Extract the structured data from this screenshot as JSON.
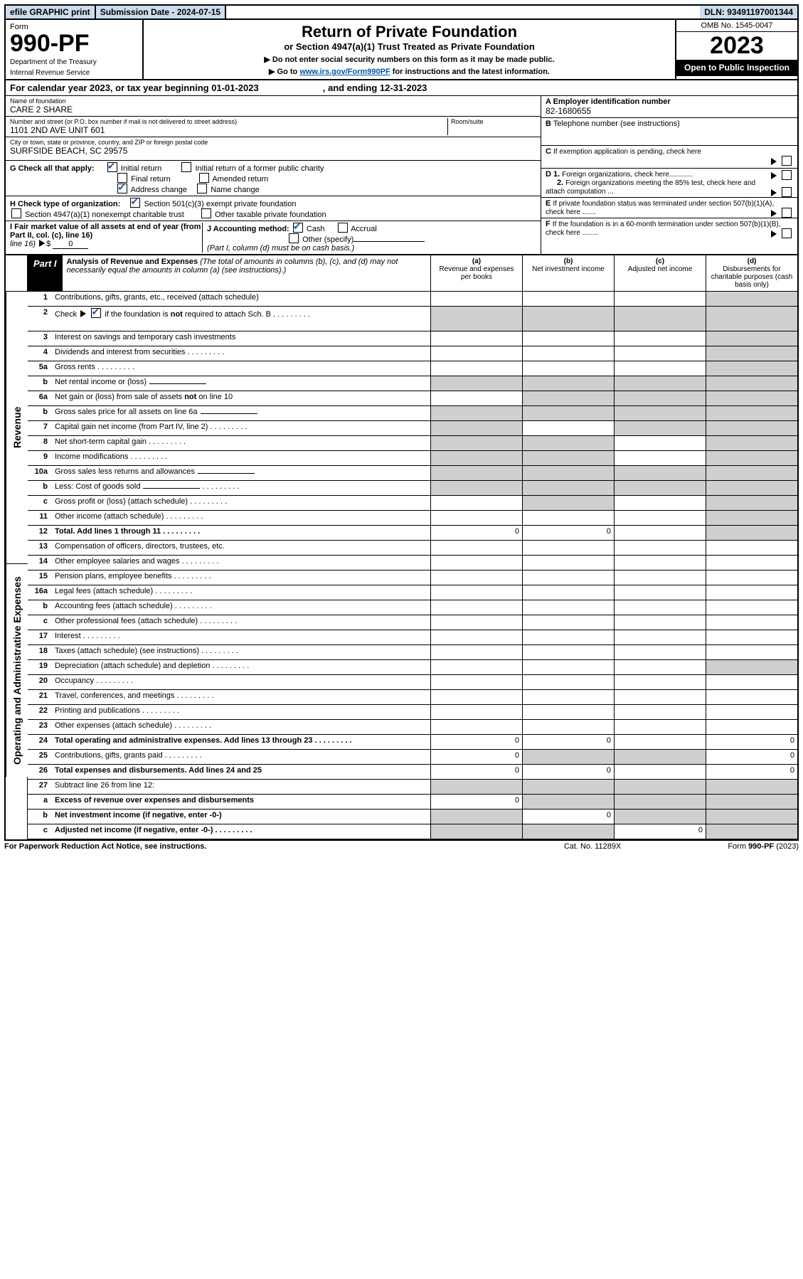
{
  "top": {
    "efile": "efile GRAPHIC print",
    "sub": "Submission Date - 2024-07-15",
    "dln": "DLN: 93491197001344"
  },
  "hdr": {
    "form": "Form",
    "num": "990-PF",
    "dept": "Department of the Treasury",
    "irs": "Internal Revenue Service",
    "title": "Return of Private Foundation",
    "sub": "or Section 4947(a)(1) Trust Treated as Private Foundation",
    "l1": "▶ Do not enter social security numbers on this form as it may be made public.",
    "l2": "▶ Go to",
    "link": "www.irs.gov/Form990PF",
    "l2b": "for instructions and the latest information.",
    "omb": "OMB No. 1545-0047",
    "year": "2023",
    "pub": "Open to Public Inspection"
  },
  "cal": {
    "a": "For calendar year 2023, or tax year beginning 01-01-2023",
    "b": ", and ending 12-31-2023"
  },
  "id": {
    "name_l": "Name of foundation",
    "name": "CARE 2 SHARE",
    "addr_l": "Number and street (or P.O. box number if mail is not delivered to street address)",
    "addr": "1101 2ND AVE UNIT 601",
    "room_l": "Room/suite",
    "city_l": "City or town, state or province, country, and ZIP or foreign postal code",
    "city": "SURFSIDE BEACH, SC  29575",
    "a_l": "A Employer identification number",
    "a": "82-1680655",
    "b_l": "B",
    "b": "Telephone number (see instructions)",
    "c": "C",
    "c_t": "If exemption application is pending, check here",
    "d1": "D 1.",
    "d1_t": "Foreign organizations, check here............",
    "d2": "2.",
    "d2_t": "Foreign organizations meeting the 85% test, check here and attach computation ...",
    "e": "E",
    "e_t": "If private foundation status was terminated under section 507(b)(1)(A), check here .......",
    "f": "F",
    "f_t": "If the foundation is in a 60-month termination under section 507(b)(1)(B), check here ........"
  },
  "g": {
    "t": "G Check all that apply:",
    "r1": "Initial return",
    "r2": "Initial return of a former public charity",
    "r3": "Final return",
    "r4": "Amended return",
    "r5": "Address change",
    "r6": "Name change"
  },
  "h": {
    "t": "H Check type of organization:",
    "a": "Section 501(c)(3) exempt private foundation",
    "b": "Section 4947(a)(1) nonexempt charitable trust",
    "c": "Other taxable private foundation"
  },
  "i": {
    "t": "I Fair market value of all assets at end of year (from Part II, col. (c), line 16)",
    "arrow": "▶",
    "amt": "$",
    "val": "0"
  },
  "j": {
    "t": "J Accounting method:",
    "a": "Cash",
    "b": "Accrual",
    "c": "Other (specify)",
    "d": "(Part I, column (d) must be on cash basis.)"
  },
  "part": {
    "tag": "Part I",
    "title": "Analysis of Revenue and Expenses",
    "desc": "(The total of amounts in columns (b), (c), and (d) may not necessarily equal the amounts in column (a) (see instructions).)",
    "ca": "(a)",
    "cat": "Revenue and expenses per books",
    "cb": "(b)",
    "cbt": "Net investment income",
    "cc": "(c)",
    "cct": "Adjusted net income",
    "cd": "(d)",
    "cdt": "Disbursements for charitable purposes (cash basis only)"
  },
  "rev": [
    {
      "n": "1",
      "t": "Contributions, gifts, grants, etc., received (attach schedule)",
      "g": [
        0,
        0,
        0,
        1
      ]
    },
    {
      "n": "2",
      "t": "Check ▶ ☑ if the foundation is not required to attach Sch. B",
      "dots": 1,
      "g": [
        1,
        1,
        1,
        1
      ],
      "tall": 1
    },
    {
      "n": "3",
      "t": "Interest on savings and temporary cash investments",
      "g": [
        0,
        0,
        0,
        1
      ]
    },
    {
      "n": "4",
      "t": "Dividends and interest from securities",
      "dots": 1,
      "g": [
        0,
        0,
        0,
        1
      ]
    },
    {
      "n": "5a",
      "t": "Gross rents",
      "dots": 1,
      "g": [
        0,
        0,
        0,
        1
      ]
    },
    {
      "n": "b",
      "t": "Net rental income or (loss)",
      "short": 1,
      "g": [
        1,
        1,
        1,
        1
      ]
    },
    {
      "n": "6a",
      "t": "Net gain or (loss) from sale of assets not on line 10",
      "g": [
        0,
        1,
        1,
        1
      ]
    },
    {
      "n": "b",
      "t": "Gross sales price for all assets on line 6a",
      "short": 1,
      "g": [
        1,
        1,
        1,
        1
      ]
    },
    {
      "n": "7",
      "t": "Capital gain net income (from Part IV, line 2)",
      "dots": 1,
      "g": [
        1,
        0,
        1,
        1
      ]
    },
    {
      "n": "8",
      "t": "Net short-term capital gain",
      "dots": 1,
      "g": [
        1,
        1,
        0,
        1
      ]
    },
    {
      "n": "9",
      "t": "Income modifications",
      "dots": 1,
      "g": [
        1,
        1,
        0,
        1
      ]
    },
    {
      "n": "10a",
      "t": "Gross sales less returns and allowances",
      "short": 1,
      "g": [
        1,
        1,
        1,
        1
      ]
    },
    {
      "n": "b",
      "t": "Less: Cost of goods sold",
      "dots": 1,
      "short": 1,
      "g": [
        1,
        1,
        1,
        1
      ]
    },
    {
      "n": "c",
      "t": "Gross profit or (loss) (attach schedule)",
      "dots": 1,
      "g": [
        0,
        1,
        0,
        1
      ]
    },
    {
      "n": "11",
      "t": "Other income (attach schedule)",
      "dots": 1,
      "g": [
        0,
        0,
        0,
        1
      ]
    },
    {
      "n": "12",
      "t": "Total. Add lines 1 through 11",
      "dots": 1,
      "bold": 1,
      "v": [
        "0",
        "0",
        "",
        ""
      ],
      "g": [
        0,
        0,
        0,
        1
      ]
    }
  ],
  "exp": [
    {
      "n": "13",
      "t": "Compensation of officers, directors, trustees, etc."
    },
    {
      "n": "14",
      "t": "Other employee salaries and wages",
      "dots": 1
    },
    {
      "n": "15",
      "t": "Pension plans, employee benefits",
      "dots": 1
    },
    {
      "n": "16a",
      "t": "Legal fees (attach schedule)",
      "dots": 1
    },
    {
      "n": "b",
      "t": "Accounting fees (attach schedule)",
      "dots": 1
    },
    {
      "n": "c",
      "t": "Other professional fees (attach schedule)",
      "dots": 1
    },
    {
      "n": "17",
      "t": "Interest",
      "dots": 1
    },
    {
      "n": "18",
      "t": "Taxes (attach schedule) (see instructions)",
      "dots": 1
    },
    {
      "n": "19",
      "t": "Depreciation (attach schedule) and depletion",
      "dots": 1,
      "g": [
        0,
        0,
        0,
        1
      ]
    },
    {
      "n": "20",
      "t": "Occupancy",
      "dots": 1
    },
    {
      "n": "21",
      "t": "Travel, conferences, and meetings",
      "dots": 1
    },
    {
      "n": "22",
      "t": "Printing and publications",
      "dots": 1
    },
    {
      "n": "23",
      "t": "Other expenses (attach schedule)",
      "dots": 1
    },
    {
      "n": "24",
      "t": "Total operating and administrative expenses. Add lines 13 through 23",
      "dots": 1,
      "bold": 1,
      "v": [
        "0",
        "0",
        "",
        "0"
      ]
    },
    {
      "n": "25",
      "t": "Contributions, gifts, grants paid",
      "dots": 1,
      "v": [
        "0",
        "",
        "",
        "0"
      ],
      "g": [
        0,
        1,
        1,
        0
      ]
    },
    {
      "n": "26",
      "t": "Total expenses and disbursements. Add lines 24 and 25",
      "bold": 1,
      "v": [
        "0",
        "0",
        "",
        "0"
      ]
    }
  ],
  "net": [
    {
      "n": "27",
      "t": "Subtract line 26 from line 12:",
      "g": [
        1,
        1,
        1,
        1
      ]
    },
    {
      "n": "a",
      "t": "Excess of revenue over expenses and disbursements",
      "bold": 1,
      "v": [
        "0",
        "",
        "",
        ""
      ],
      "g": [
        0,
        1,
        1,
        1
      ]
    },
    {
      "n": "b",
      "t": "Net investment income (if negative, enter -0-)",
      "bold": 1,
      "v": [
        "",
        "0",
        "",
        ""
      ],
      "g": [
        1,
        0,
        1,
        1
      ]
    },
    {
      "n": "c",
      "t": "Adjusted net income (if negative, enter -0-)",
      "bold": 1,
      "dots": 1,
      "v": [
        "",
        "",
        "0",
        ""
      ],
      "g": [
        1,
        1,
        0,
        1
      ]
    }
  ],
  "side": {
    "rev": "Revenue",
    "exp": "Operating and Administrative Expenses"
  },
  "ftr": {
    "a": "For Paperwork Reduction Act Notice, see instructions.",
    "b": "Cat. No. 11289X",
    "c": "Form",
    "d": "990-PF",
    "e": "(2023)"
  }
}
